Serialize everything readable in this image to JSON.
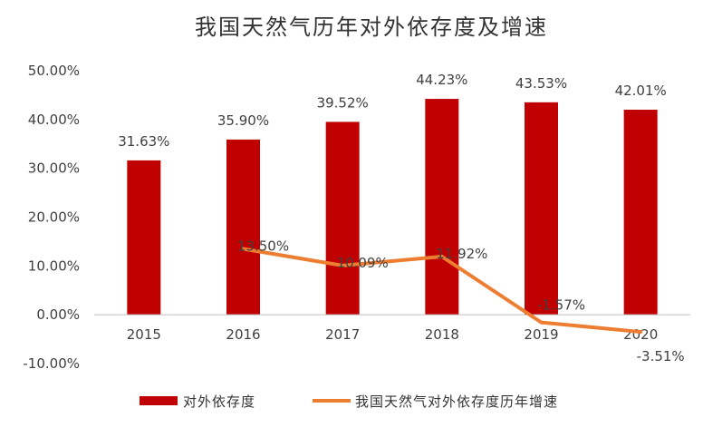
{
  "chart_data": {
    "type": "bar+line",
    "title": "我国天然气历年对外依存度及增速",
    "categories": [
      "2015",
      "2016",
      "2017",
      "2018",
      "2019",
      "2020"
    ],
    "ylim": [
      -10,
      50
    ],
    "yticks": [
      -10,
      0,
      10,
      20,
      30,
      40,
      50
    ],
    "ytick_labels": [
      "-10.00%",
      "0.00%",
      "10.00%",
      "20.00%",
      "30.00%",
      "40.00%",
      "50.00%"
    ],
    "grid": false,
    "legend_position": "bottom",
    "series": [
      {
        "name": "对外依存度",
        "kind": "bar",
        "color": "#C00000",
        "values": [
          31.63,
          35.9,
          39.52,
          44.23,
          43.53,
          42.01
        ],
        "labels": [
          "31.63%",
          "35.90%",
          "39.52%",
          "44.23%",
          "43.53%",
          "42.01%"
        ]
      },
      {
        "name": "我国天然气对外依存度历年增速",
        "kind": "line",
        "color": "#ED7D31",
        "values": [
          null,
          13.5,
          10.09,
          11.92,
          -1.57,
          -3.51
        ],
        "labels": [
          "",
          "13.50%",
          "10.09%",
          "11.92%",
          "-1.57%",
          "-3.51%"
        ]
      }
    ]
  }
}
